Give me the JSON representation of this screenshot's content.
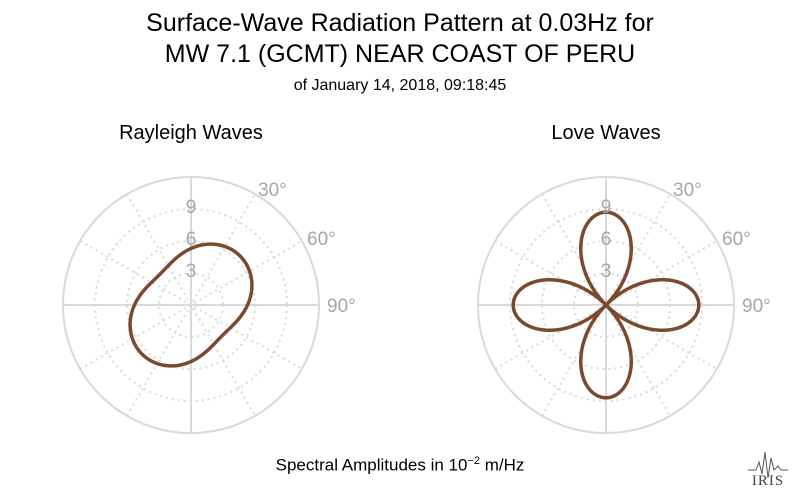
{
  "title_line1": "Surface-Wave Radiation Pattern at 0.03Hz for",
  "title_line2": "MW 7.1 (GCMT) NEAR COAST OF PERU",
  "subtitle": "of January 14, 2018, 09:18:45",
  "footer": {
    "prefix": "Spectral Amplitudes in ",
    "base": "10",
    "exponent": "−2",
    "suffix": " m/Hz"
  },
  "logo_text": "IRIS",
  "colors": {
    "pattern": "#7a4a2e",
    "grid": "#d9d9d9",
    "label": "#a6a6a6"
  },
  "chart_data": [
    {
      "type": "polar",
      "title": "Rayleigh Waves",
      "r_ticks": [
        3,
        6,
        9
      ],
      "r_max": 12,
      "angle_ticks": [
        {
          "deg": 30,
          "label": "30°"
        },
        {
          "deg": 60,
          "label": "60°"
        },
        {
          "deg": 90,
          "label": "90°"
        }
      ],
      "pattern": {
        "form": "rayleigh",
        "c0": 5.3,
        "c2": 1.2,
        "phase2_deg": 45,
        "note": ""
      }
    },
    {
      "type": "polar",
      "title": "Love Waves",
      "r_ticks": [
        3,
        6,
        9
      ],
      "r_max": 12,
      "angle_ticks": [
        {
          "deg": 30,
          "label": "30°"
        },
        {
          "deg": 60,
          "label": "60°"
        },
        {
          "deg": 90,
          "label": "90°"
        }
      ],
      "pattern": {
        "form": "love",
        "amplitude": 8.7,
        "lobe_axes_deg": [
          0,
          90,
          180,
          270
        ]
      }
    }
  ]
}
